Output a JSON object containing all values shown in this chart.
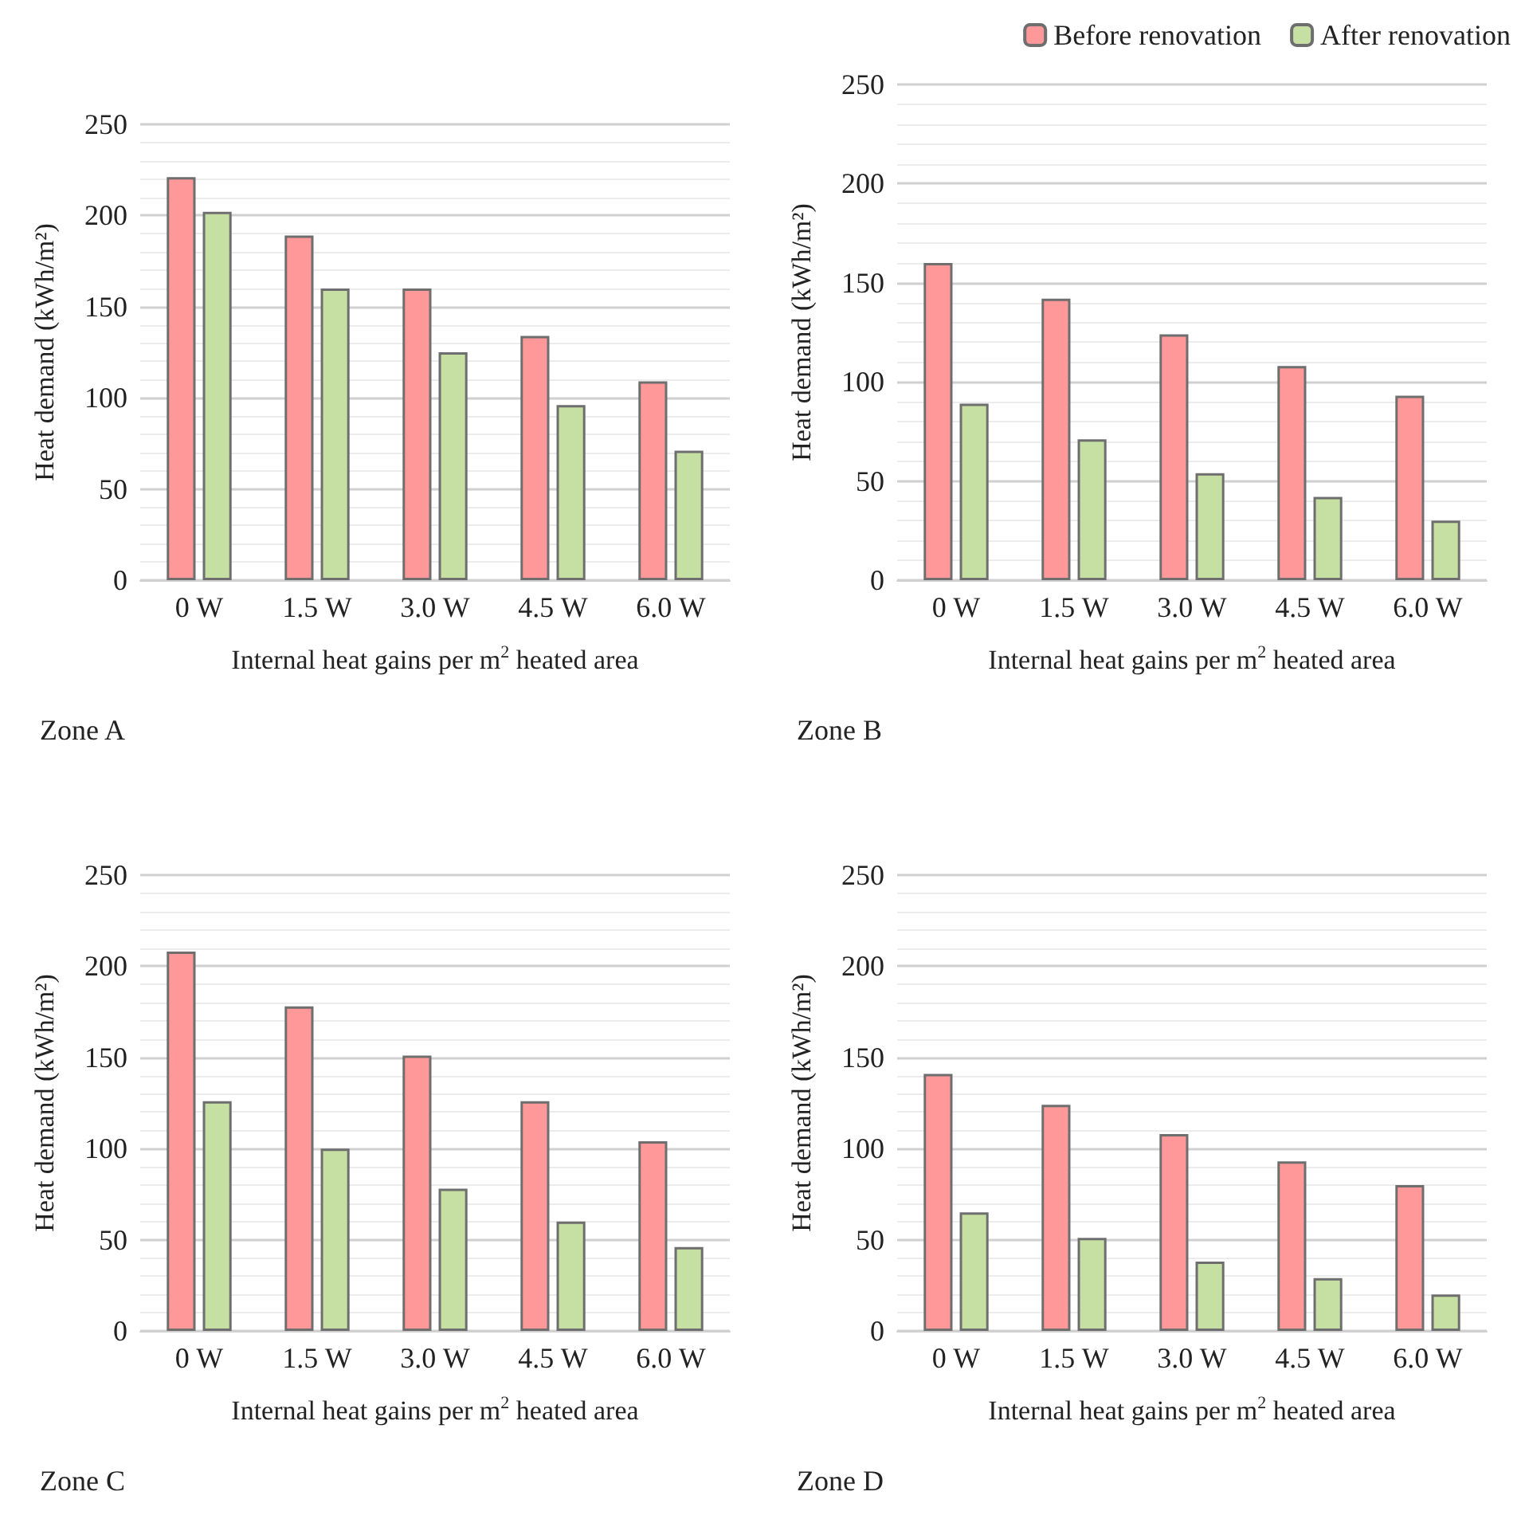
{
  "chart_data": [
    {
      "type": "bar",
      "title": "Zone A",
      "xlabel": "Internal heat gains per m$^{2}$ heated area",
      "ylabel": "Heat demand (kWh/m²)",
      "categories": [
        "0 W",
        "1.5 W",
        "3.0 W",
        "4.5 W",
        "6.0 W"
      ],
      "series": [
        {
          "color": "#ff9999",
          "values": [
            221,
            189,
            160,
            134,
            109
          ]
        },
        {
          "color": "#c6e0a4",
          "values": [
            202,
            160,
            125,
            96,
            71
          ]
        }
      ],
      "ylim": [
        0,
        250
      ],
      "yticks": [
        0,
        50,
        100,
        150,
        200,
        250
      ],
      "grid": "y",
      "legend": false
    },
    {
      "type": "bar",
      "title": "Zone B",
      "xlabel": "Internal heat gains per m$^{2}$ heated area",
      "ylabel": "Heat demand (kWh/m²)",
      "categories": [
        "0 W",
        "1.5 W",
        "3.0 W",
        "4.5 W",
        "6.0 W"
      ],
      "series": [
        {
          "name": "Before renovation",
          "color": "#ff9999",
          "values": [
            160,
            142,
            124,
            108,
            93
          ]
        },
        {
          "name": "After renovation",
          "color": "#c6e0a4",
          "values": [
            89,
            71,
            54,
            42,
            30
          ]
        }
      ],
      "ylim": [
        0,
        250
      ],
      "yticks": [
        0,
        50,
        100,
        150,
        200,
        250
      ],
      "grid": "y",
      "legend": "top right"
    },
    {
      "type": "bar",
      "title": "Zone C",
      "xlabel": "Internal heat gains per m$^{2}$ heated area",
      "ylabel": "Heat demand (kWh/m²)",
      "categories": [
        "0 W",
        "1.5 W",
        "3.0 W",
        "4.5 W",
        "6.0 W"
      ],
      "series": [
        {
          "color": "#ff9999",
          "values": [
            208,
            178,
            151,
            126,
            104
          ]
        },
        {
          "color": "#c6e0a4",
          "values": [
            126,
            100,
            78,
            60,
            46
          ]
        }
      ],
      "ylim": [
        0,
        250
      ],
      "yticks": [
        0,
        50,
        100,
        150,
        200,
        250
      ],
      "grid": "y",
      "legend": false
    },
    {
      "type": "bar",
      "title": "Zone D",
      "xlabel": "Internal heat gains per m$^{2}$ heated area",
      "ylabel": "Heat demand (kWh/m²)",
      "categories": [
        "0 W",
        "1.5 W",
        "3.0 W",
        "4.5 W",
        "6.0 W"
      ],
      "series": [
        {
          "color": "#ff9999",
          "values": [
            141,
            124,
            108,
            93,
            80
          ]
        },
        {
          "color": "#c6e0a4",
          "values": [
            65,
            51,
            38,
            29,
            20
          ]
        }
      ],
      "ylim": [
        0,
        250
      ],
      "yticks": [
        0,
        50,
        100,
        150,
        200,
        250
      ],
      "grid": "y",
      "legend": false
    }
  ]
}
